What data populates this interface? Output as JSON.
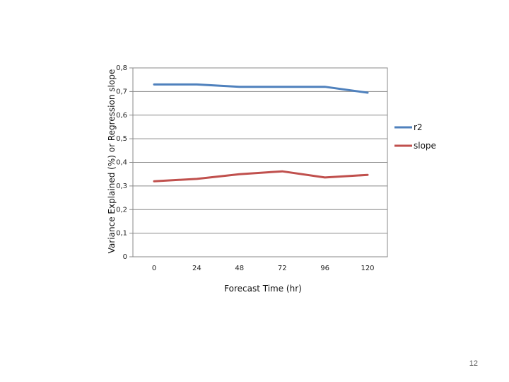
{
  "chart_data": {
    "type": "line",
    "x": [
      0,
      24,
      48,
      72,
      96,
      120
    ],
    "series": [
      {
        "name": "r2",
        "color": "#4f81bd",
        "values": [
          0.73,
          0.73,
          0.72,
          0.72,
          0.72,
          0.695
        ]
      },
      {
        "name": "slope",
        "color": "#c0504d",
        "values": [
          0.32,
          0.33,
          0.35,
          0.362,
          0.336,
          0.347
        ]
      }
    ],
    "xlabel": "Forecast Time (hr)",
    "ylabel": "Variance Explained (%) or Regression slope",
    "ylim": [
      0,
      0.8
    ],
    "yticks": [
      0,
      0.1,
      0.2,
      0.3,
      0.4,
      0.5,
      0.6,
      0.7,
      0.8
    ],
    "ytick_labels": [
      "0",
      "0,1",
      "0,2",
      "0,3",
      "0,4",
      "0,5",
      "0,6",
      "0,7",
      "0,8"
    ],
    "xtick_labels": [
      "0",
      "24",
      "48",
      "72",
      "96",
      "120"
    ],
    "grid": "horizontal",
    "legend_position": "right"
  },
  "page_number": "12"
}
